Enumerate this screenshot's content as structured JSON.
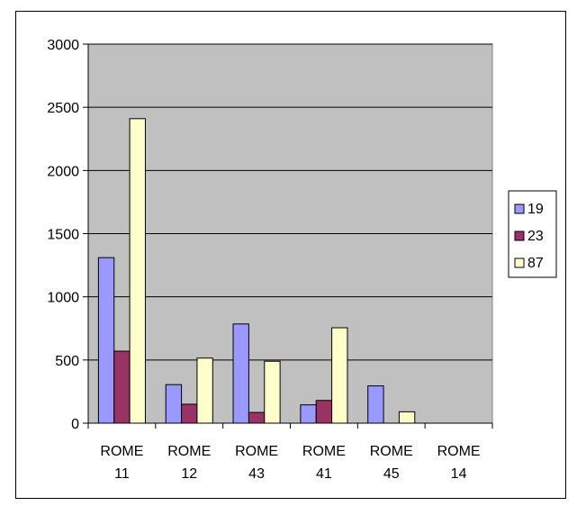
{
  "chart_data": {
    "type": "bar",
    "title": "",
    "xlabel": "",
    "ylabel": "",
    "ylim": [
      0,
      3000
    ],
    "yticks": [
      0,
      500,
      1000,
      1500,
      2000,
      2500,
      3000
    ],
    "grid": true,
    "legend_position": "right",
    "plot_background": "#c0c0c0",
    "categories": [
      [
        "ROME",
        "11"
      ],
      [
        "ROME",
        "12"
      ],
      [
        "ROME",
        "43"
      ],
      [
        "ROME",
        "41"
      ],
      [
        "ROME",
        "45"
      ],
      [
        "ROME",
        "14"
      ]
    ],
    "series": [
      {
        "name": "19",
        "color": "#9999ff",
        "values": [
          1310,
          305,
          785,
          145,
          295,
          0
        ]
      },
      {
        "name": "23",
        "color": "#993366",
        "values": [
          570,
          150,
          85,
          180,
          0,
          0
        ]
      },
      {
        "name": "87",
        "color": "#ffffcc",
        "values": [
          2410,
          515,
          490,
          755,
          90,
          0
        ]
      }
    ]
  }
}
